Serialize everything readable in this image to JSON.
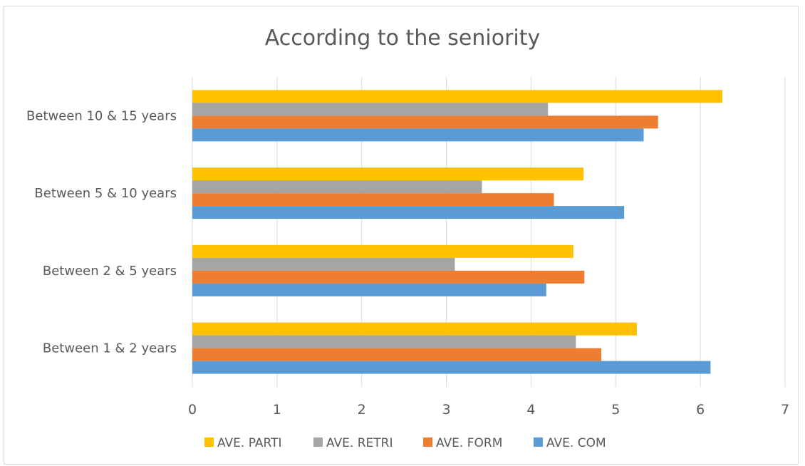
{
  "chart_data": {
    "type": "bar",
    "orientation": "horizontal",
    "title": "According to the seniority",
    "categories": [
      "Between 1 & 2 years",
      "Between 2 & 5 years",
      "Between 5 & 10 years",
      "Between 10 & 15 years"
    ],
    "series": [
      {
        "name": "AVE. PARTI",
        "color": "#FFC000",
        "values": [
          5.25,
          4.5,
          4.62,
          6.26
        ]
      },
      {
        "name": "AVE. RETRI",
        "color": "#A5A5A5",
        "values": [
          4.53,
          3.1,
          3.42,
          4.2
        ]
      },
      {
        "name": "AVE. FORM",
        "color": "#ED7D31",
        "values": [
          4.83,
          4.63,
          4.27,
          5.5
        ]
      },
      {
        "name": "AVE. COM",
        "color": "#5B9BD5",
        "values": [
          6.12,
          4.18,
          5.1,
          5.33
        ]
      }
    ],
    "xlim": [
      0,
      7
    ],
    "xticks": [
      "0",
      "1",
      "2",
      "3",
      "4",
      "5",
      "6",
      "7"
    ],
    "grid": true,
    "legend_position": "bottom"
  }
}
